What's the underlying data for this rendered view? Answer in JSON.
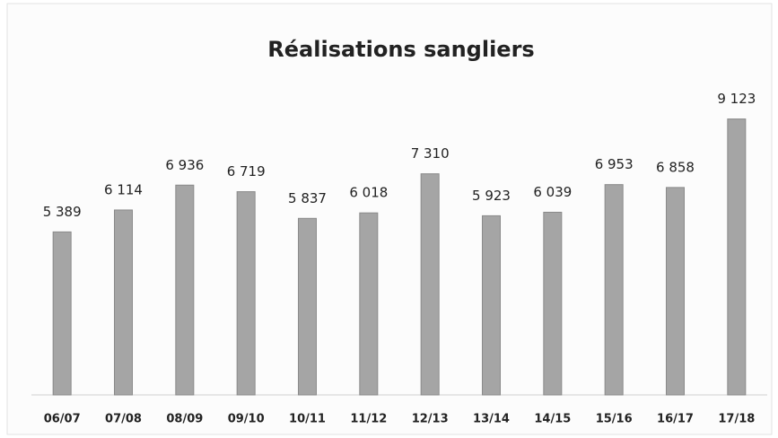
{
  "chart_data": {
    "type": "bar",
    "title": "Réalisations sangliers",
    "categories": [
      "06/07",
      "07/08",
      "08/09",
      "09/10",
      "10/11",
      "11/12",
      "12/13",
      "13/14",
      "14/15",
      "15/16",
      "16/17",
      "17/18"
    ],
    "values": [
      5389,
      6114,
      6936,
      6719,
      5837,
      6018,
      7310,
      5923,
      6039,
      6953,
      6858,
      9123
    ],
    "value_labels": [
      "5 389",
      "6 114",
      "6 936",
      "6 719",
      "5 837",
      "6 018",
      "7 310",
      "5 923",
      "6 039",
      "6 953",
      "6 858",
      "9 123"
    ],
    "color": "#a5a5a5",
    "ylim": [
      0,
      10000
    ]
  }
}
